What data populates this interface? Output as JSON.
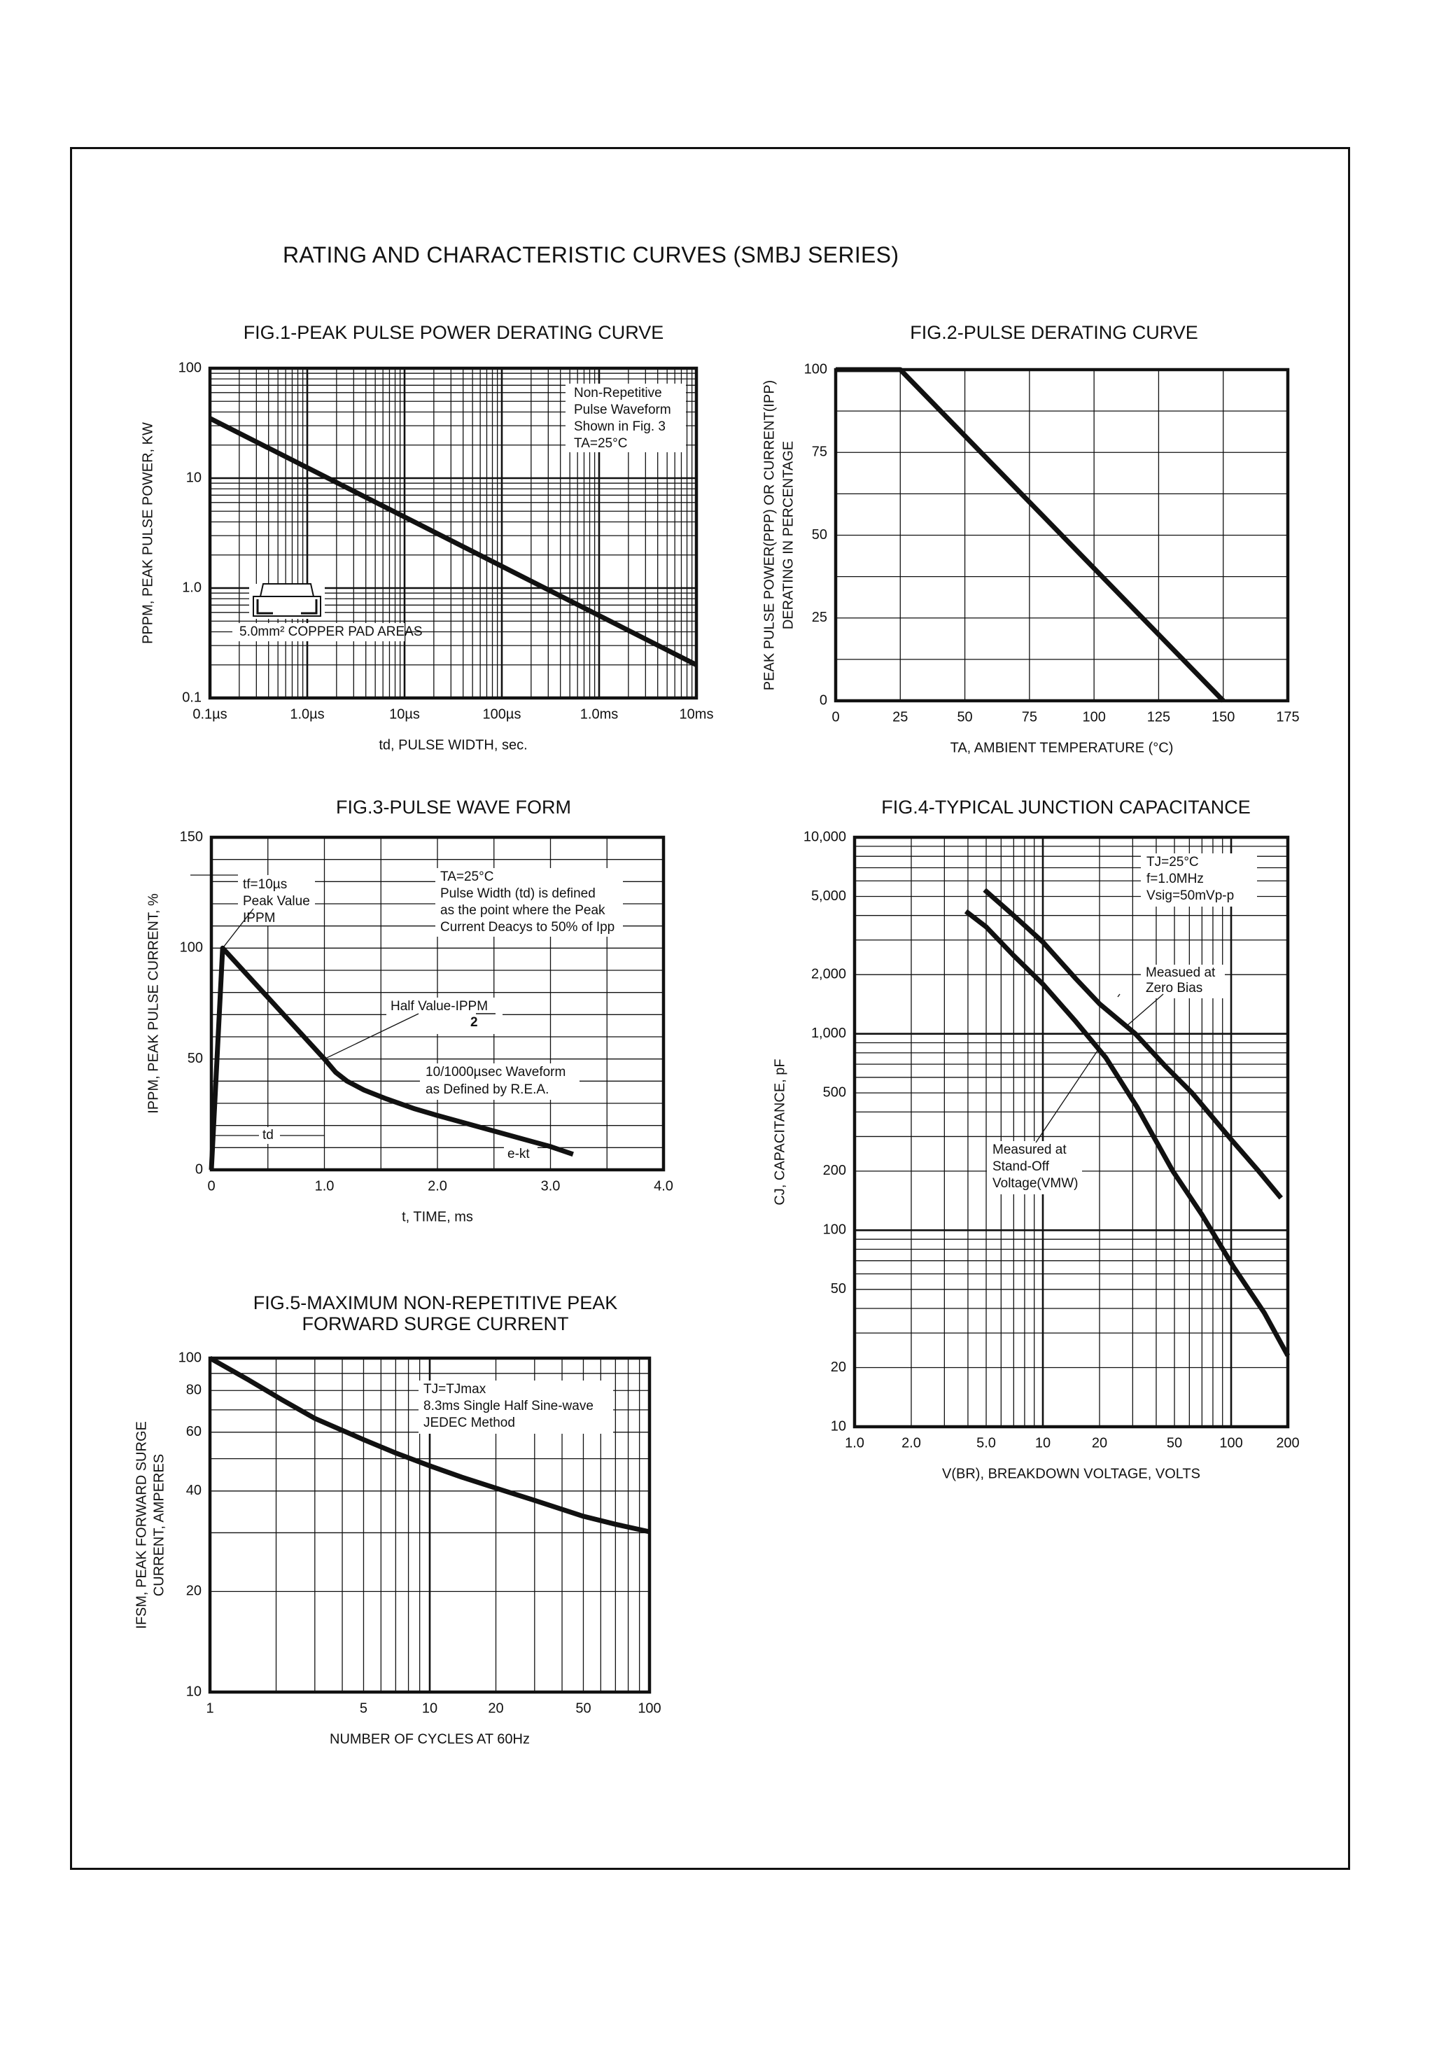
{
  "page_title": "RATING AND CHARACTERISTIC CURVES (SMBJ SERIES)",
  "chart_data": [
    {
      "id": "fig1",
      "type": "line",
      "title": [
        "FIG.1-PEAK PULSE POWER DERATING CURVE"
      ],
      "xlabel": "td, PULSE WIDTH, sec.",
      "ylabel": [
        "PPPM, PEAK PULSE POWER, KW"
      ],
      "xscale": "log",
      "yscale": "log",
      "xlim": [
        1e-07,
        0.01
      ],
      "ylim": [
        0.1,
        100
      ],
      "grid": "log-minor",
      "xticks": [
        {
          "v": 1e-07,
          "label": "0.1µs"
        },
        {
          "v": 1e-06,
          "label": "1.0µs"
        },
        {
          "v": 1e-05,
          "label": "10µs"
        },
        {
          "v": 0.0001,
          "label": "100µs"
        },
        {
          "v": 0.001,
          "label": "1.0ms"
        },
        {
          "v": 0.01,
          "label": "10ms"
        }
      ],
      "yticks": [
        {
          "v": 0.1,
          "label": "0.1"
        },
        {
          "v": 1,
          "label": "1.0"
        },
        {
          "v": 10,
          "label": "10"
        },
        {
          "v": 100,
          "label": "100"
        }
      ],
      "series": [
        {
          "x": [
            1e-07,
            0.01
          ],
          "y": [
            35,
            0.2
          ]
        }
      ],
      "annotations": [
        {
          "id": "conditions",
          "lines": [
            "Non-Repetitive",
            "Pulse Waveform",
            "Shown in Fig. 3",
            "TA=25°C"
          ]
        },
        {
          "id": "pad",
          "lines": [
            "5.0mm² COPPER PAD AREAS"
          ]
        }
      ],
      "icon": "smd-package-icon"
    },
    {
      "id": "fig2",
      "type": "line",
      "title": [
        "FIG.2-PULSE DERATING CURVE"
      ],
      "xlabel": "TA, AMBIENT TEMPERATURE (°C)",
      "ylabel": [
        "PEAK PULSE POWER(PPP) OR CURRENT(IPP)",
        "DERATING IN PERCENTAGE"
      ],
      "xscale": "linear",
      "yscale": "linear",
      "xlim": [
        0,
        175
      ],
      "ylim": [
        0,
        100
      ],
      "grid": true,
      "xgrid": [
        25,
        50,
        75,
        100,
        125,
        150
      ],
      "ygrid": [
        12.5,
        25,
        37.5,
        50,
        62.5,
        75,
        87.5
      ],
      "xticks": [
        {
          "v": 0,
          "label": "0"
        },
        {
          "v": 25,
          "label": "25"
        },
        {
          "v": 50,
          "label": "50"
        },
        {
          "v": 75,
          "label": "75"
        },
        {
          "v": 100,
          "label": "100"
        },
        {
          "v": 125,
          "label": "125"
        },
        {
          "v": 150,
          "label": "150"
        },
        {
          "v": 175,
          "label": "175"
        }
      ],
      "yticks": [
        {
          "v": 0,
          "label": "0"
        },
        {
          "v": 25,
          "label": "25"
        },
        {
          "v": 50,
          "label": "50"
        },
        {
          "v": 75,
          "label": "75"
        },
        {
          "v": 100,
          "label": "100"
        }
      ],
      "series": [
        {
          "x": [
            0,
            25,
            150
          ],
          "y": [
            100,
            100,
            0
          ]
        }
      ],
      "annotations": []
    },
    {
      "id": "fig3",
      "type": "line",
      "title": [
        "FIG.3-PULSE WAVE FORM"
      ],
      "xlabel": "t, TIME, ms",
      "ylabel": [
        "IPPM, PEAK PULSE CURRENT, %"
      ],
      "xscale": "linear",
      "yscale": "linear",
      "xlim": [
        0,
        4.0
      ],
      "ylim": [
        0,
        150
      ],
      "grid": true,
      "xgrid": [
        0.5,
        1.0,
        1.5,
        2.0,
        2.5,
        3.0,
        3.5
      ],
      "ygrid": [
        10,
        20,
        30,
        40,
        50,
        60,
        70,
        80,
        90,
        100,
        110,
        120,
        130,
        140
      ],
      "xticks": [
        {
          "v": 0,
          "label": "0"
        },
        {
          "v": 1,
          "label": "1.0"
        },
        {
          "v": 2,
          "label": "2.0"
        },
        {
          "v": 3,
          "label": "3.0"
        },
        {
          "v": 4,
          "label": "4.0"
        }
      ],
      "yticks": [
        {
          "v": 0,
          "label": "0"
        },
        {
          "v": 50,
          "label": "50"
        },
        {
          "v": 100,
          "label": "100"
        },
        {
          "v": 150,
          "label": "150"
        }
      ],
      "series": [
        {
          "x": [
            0,
            0.1,
            0.55,
            1.0,
            1.1,
            1.2,
            1.35,
            1.55,
            1.8,
            2.0,
            2.25,
            2.5,
            2.75,
            3.0,
            3.2
          ],
          "y": [
            0,
            100,
            75,
            50,
            44,
            40,
            36,
            32,
            27.5,
            24.5,
            21,
            17.5,
            14,
            10.5,
            7
          ]
        }
      ],
      "annotations": [
        {
          "id": "peak",
          "lines": [
            "tf=10µs",
            "Peak Value",
            "IPPM"
          ]
        },
        {
          "id": "conditions",
          "lines": [
            "TA=25°C",
            "Pulse Width (td) is defined",
            "as the point where the Peak",
            "Current Deacys to 50% of Ipp"
          ]
        },
        {
          "id": "half",
          "lines": [
            "Half Value-IPPM",
            "2"
          ]
        },
        {
          "id": "waveform",
          "lines": [
            "10/1000µsec Waveform",
            "as Defined by R.E.A."
          ]
        },
        {
          "id": "td",
          "lines": [
            "td"
          ]
        },
        {
          "id": "ekt",
          "lines": [
            "e-kt"
          ]
        }
      ]
    },
    {
      "id": "fig4",
      "type": "line",
      "title": [
        "FIG.4-TYPICAL JUNCTION CAPACITANCE"
      ],
      "xlabel": "V(BR), BREAKDOWN VOLTAGE, VOLTS",
      "ylabel": [
        "CJ, CAPACITANCE, pF"
      ],
      "xscale": "log",
      "yscale": "log",
      "xlim": [
        1,
        200
      ],
      "ylim": [
        10,
        10000
      ],
      "grid": "log-minor",
      "xticks": [
        {
          "v": 1,
          "label": "1.0"
        },
        {
          "v": 2,
          "label": "2.0"
        },
        {
          "v": 5,
          "label": "5.0"
        },
        {
          "v": 10,
          "label": "10"
        },
        {
          "v": 20,
          "label": "20"
        },
        {
          "v": 50,
          "label": "50"
        },
        {
          "v": 100,
          "label": "100"
        },
        {
          "v": 200,
          "label": "200"
        }
      ],
      "yticks": [
        {
          "v": 10,
          "label": "10"
        },
        {
          "v": 20,
          "label": "20"
        },
        {
          "v": 50,
          "label": "50"
        },
        {
          "v": 100,
          "label": "100"
        },
        {
          "v": 200,
          "label": "200"
        },
        {
          "v": 500,
          "label": "500"
        },
        {
          "v": 1000,
          "label": "1,000"
        },
        {
          "v": 2000,
          "label": "2,000"
        },
        {
          "v": 5000,
          "label": "5,000"
        },
        {
          "v": 10000,
          "label": "10,000"
        }
      ],
      "series": [
        {
          "name": "Measued at Zero Bias",
          "x": [
            4.9,
            7,
            10,
            15,
            20,
            31,
            45,
            62,
            100,
            140,
            184
          ],
          "y": [
            5400,
            4000,
            2930,
            1900,
            1420,
            1000,
            680,
            500,
            290,
            200,
            146
          ]
        },
        {
          "name": "Measured at Stand-Off Voltage(VMW)",
          "x": [
            3.9,
            5,
            7,
            10,
            15,
            21.6,
            31.6,
            49,
            70,
            103,
            150,
            200
          ],
          "y": [
            4200,
            3500,
            2500,
            1790,
            1150,
            755,
            425,
            200,
            120,
            65,
            38,
            23
          ]
        }
      ],
      "annotations": [
        {
          "id": "conditions",
          "lines": [
            "TJ=25°C",
            "f=1.0MHz",
            "Vsig=50mVp-p"
          ]
        },
        {
          "id": "zero",
          "lines": [
            "Measued at",
            "Zero Bias"
          ]
        },
        {
          "id": "standoff",
          "lines": [
            "Measured at",
            "Stand-Off",
            "Voltage(VMW)"
          ]
        }
      ]
    },
    {
      "id": "fig5",
      "type": "line",
      "title": [
        "FIG.5-MAXIMUM NON-REPETITIVE PEAK",
        "FORWARD SURGE CURRENT"
      ],
      "xlabel": "NUMBER OF CYCLES AT 60Hz",
      "ylabel": [
        "IFSM, PEAK FORWARD SURGE",
        "CURRENT, AMPERES"
      ],
      "xscale": "log",
      "yscale": "log",
      "xlim": [
        1,
        100
      ],
      "ylim": [
        10,
        100
      ],
      "grid": "log-minor",
      "xticks": [
        {
          "v": 1,
          "label": "1"
        },
        {
          "v": 5,
          "label": "5"
        },
        {
          "v": 10,
          "label": "10"
        },
        {
          "v": 20,
          "label": "20"
        },
        {
          "v": 50,
          "label": "50"
        },
        {
          "v": 100,
          "label": "100"
        }
      ],
      "yticks": [
        {
          "v": 10,
          "label": "10"
        },
        {
          "v": 20,
          "label": "20"
        },
        {
          "v": 40,
          "label": "40"
        },
        {
          "v": 60,
          "label": "60"
        },
        {
          "v": 80,
          "label": "80"
        },
        {
          "v": 100,
          "label": "100"
        }
      ],
      "series": [
        {
          "x": [
            1,
            1.5,
            2.13,
            3,
            5,
            7,
            10,
            14,
            21,
            30,
            50,
            70,
            100
          ],
          "y": [
            100,
            86,
            75,
            66,
            57,
            52,
            47.6,
            44,
            40.4,
            37.5,
            33.6,
            31.8,
            30.2
          ]
        }
      ],
      "annotations": [
        {
          "id": "conditions",
          "lines": [
            "TJ=TJmax",
            "8.3ms Single Half Sine-wave",
            "JEDEC Method"
          ]
        }
      ]
    }
  ]
}
